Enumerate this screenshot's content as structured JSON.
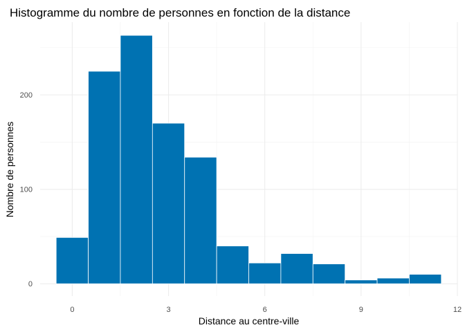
{
  "chart_data": {
    "type": "bar",
    "subtype": "histogram",
    "title": "Histogramme du nombre de personnes en fonction de la distance",
    "xlabel": "Distance au centre-ville",
    "ylabel": "Nombre de personnes",
    "bin_width": 1,
    "bins": [
      {
        "x0": -0.5,
        "x1": 0.5,
        "value": 49
      },
      {
        "x0": 0.5,
        "x1": 1.5,
        "value": 225
      },
      {
        "x0": 1.5,
        "x1": 2.5,
        "value": 263
      },
      {
        "x0": 2.5,
        "x1": 3.5,
        "value": 170
      },
      {
        "x0": 3.5,
        "x1": 4.5,
        "value": 134
      },
      {
        "x0": 4.5,
        "x1": 5.5,
        "value": 40
      },
      {
        "x0": 5.5,
        "x1": 6.5,
        "value": 22
      },
      {
        "x0": 6.5,
        "x1": 7.5,
        "value": 32
      },
      {
        "x0": 7.5,
        "x1": 8.5,
        "value": 21
      },
      {
        "x0": 8.5,
        "x1": 9.5,
        "value": 4
      },
      {
        "x0": 9.5,
        "x1": 10.5,
        "value": 6
      },
      {
        "x0": 10.5,
        "x1": 11.5,
        "value": 10
      }
    ],
    "x_ticks": [
      0,
      3,
      6,
      9,
      12
    ],
    "y_ticks": [
      0,
      100,
      200
    ],
    "xlim": [
      -1.0,
      12.0
    ],
    "ylim": [
      -13,
      277
    ],
    "grid": true,
    "bar_color": "#0072B2",
    "bar_outline_color": "#ffffff",
    "grid_color": "#ebebeb"
  }
}
